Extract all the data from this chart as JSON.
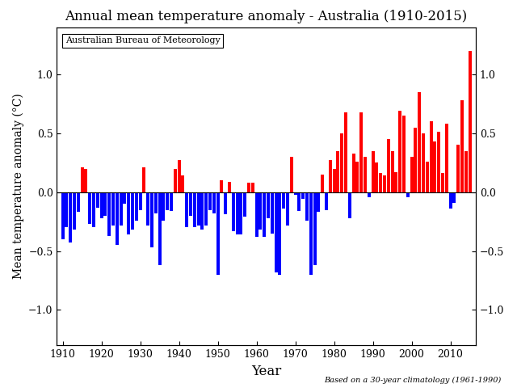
{
  "title": "Annual mean temperature anomaly - Australia (1910-2015)",
  "ylabel_left": "Mean temperature anomaly (°C)",
  "xlabel": "Year",
  "watermark": "Australian Bureau of Meteorology",
  "footnote": "Based on a 30-year climatology (1961-1990)",
  "ylim": [
    -1.3,
    1.4
  ],
  "yticks": [
    -1.0,
    -0.5,
    0.0,
    0.5,
    1.0
  ],
  "years": [
    1910,
    1911,
    1912,
    1913,
    1914,
    1915,
    1916,
    1917,
    1918,
    1919,
    1920,
    1921,
    1922,
    1923,
    1924,
    1925,
    1926,
    1927,
    1928,
    1929,
    1930,
    1931,
    1932,
    1933,
    1934,
    1935,
    1936,
    1937,
    1938,
    1939,
    1940,
    1941,
    1942,
    1943,
    1944,
    1945,
    1946,
    1947,
    1948,
    1949,
    1950,
    1951,
    1952,
    1953,
    1954,
    1955,
    1956,
    1957,
    1958,
    1959,
    1960,
    1961,
    1962,
    1963,
    1964,
    1965,
    1966,
    1967,
    1968,
    1969,
    1970,
    1971,
    1972,
    1973,
    1974,
    1975,
    1976,
    1977,
    1978,
    1979,
    1980,
    1981,
    1982,
    1983,
    1984,
    1985,
    1986,
    1987,
    1988,
    1989,
    1990,
    1991,
    1992,
    1993,
    1994,
    1995,
    1996,
    1997,
    1998,
    1999,
    2000,
    2001,
    2002,
    2003,
    2004,
    2005,
    2006,
    2007,
    2008,
    2009,
    2010,
    2011,
    2012,
    2013,
    2014,
    2015
  ],
  "anomalies": [
    -0.4,
    -0.3,
    -0.43,
    -0.32,
    -0.17,
    0.21,
    0.2,
    -0.27,
    -0.3,
    -0.13,
    -0.22,
    -0.2,
    -0.37,
    -0.28,
    -0.45,
    -0.28,
    -0.1,
    -0.36,
    -0.32,
    -0.24,
    -0.15,
    0.21,
    -0.28,
    -0.47,
    -0.18,
    -0.62,
    -0.24,
    -0.15,
    -0.16,
    0.2,
    0.27,
    0.14,
    -0.3,
    -0.2,
    -0.3,
    -0.28,
    -0.32,
    -0.28,
    -0.15,
    -0.18,
    -0.7,
    0.1,
    -0.19,
    0.09,
    -0.33,
    -0.36,
    -0.36,
    -0.21,
    0.08,
    0.08,
    -0.38,
    -0.32,
    -0.38,
    -0.22,
    -0.35,
    -0.68,
    -0.7,
    -0.14,
    -0.28,
    0.3,
    -0.02,
    -0.16,
    -0.06,
    -0.24,
    -0.7,
    -0.62,
    -0.17,
    0.15,
    -0.15,
    0.27,
    0.2,
    0.35,
    0.5,
    0.68,
    -0.22,
    0.33,
    0.26,
    0.68,
    0.3,
    -0.04,
    0.35,
    0.25,
    0.16,
    0.14,
    0.45,
    0.35,
    0.17,
    0.69,
    0.65,
    -0.04,
    0.3,
    0.55,
    0.85,
    0.5,
    0.26,
    0.6,
    0.43,
    0.51,
    0.16,
    0.58,
    -0.14,
    -0.09,
    0.4,
    0.78,
    0.35,
    1.2
  ],
  "color_positive": "#FF0000",
  "color_negative": "#0000FF",
  "background_color": "#FFFFFF",
  "xticks": [
    1910,
    1920,
    1930,
    1940,
    1950,
    1960,
    1970,
    1980,
    1990,
    2000,
    2010
  ],
  "xtick_labels": [
    "1910",
    "1920",
    "1930",
    "1940",
    "1950",
    "1960",
    "1970",
    "1980",
    "1990",
    "2000",
    "2010"
  ]
}
